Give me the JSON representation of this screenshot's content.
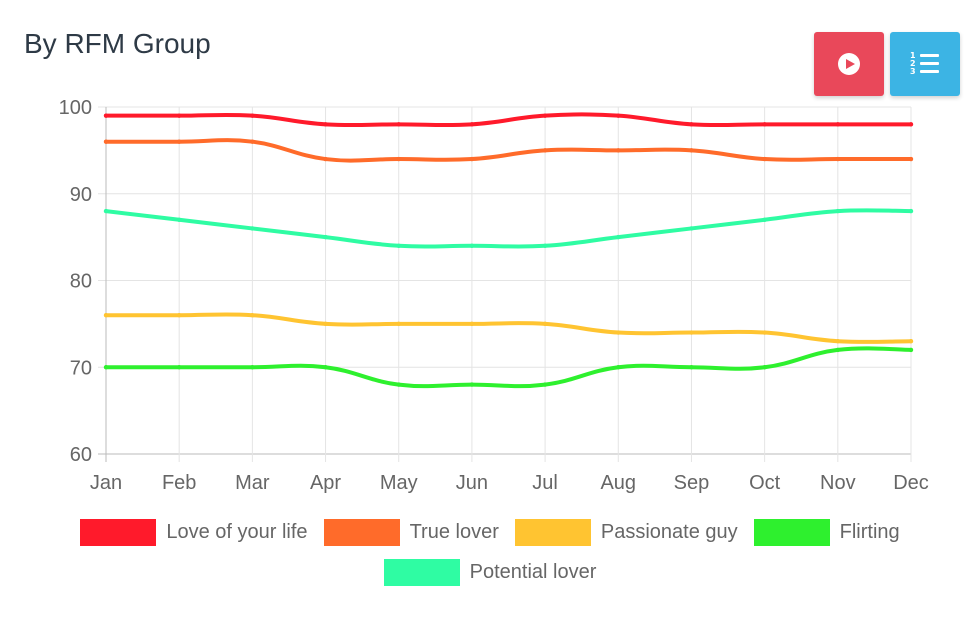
{
  "header": {
    "title": "By RFM Group"
  },
  "toolbar": {
    "play_color": "#e9485a",
    "list_color": "#3cb4e4",
    "list_numbers": [
      "1",
      "2",
      "3"
    ]
  },
  "chart_data": {
    "type": "line",
    "title": "By RFM Group",
    "xlabel": "",
    "ylabel": "",
    "x": [
      "Jan",
      "Feb",
      "Mar",
      "Apr",
      "May",
      "Jun",
      "Jul",
      "Aug",
      "Sep",
      "Oct",
      "Nov",
      "Dec"
    ],
    "ylim": [
      60,
      100
    ],
    "yticks": [
      "100",
      "90",
      "80",
      "70",
      "60"
    ],
    "grid": true,
    "legend": "bottom",
    "series": [
      {
        "name": "Love of your life",
        "color": "#ff1a2b",
        "values": [
          99,
          99,
          99,
          98,
          98,
          98,
          99,
          99,
          98,
          98,
          98,
          98
        ]
      },
      {
        "name": "True lover",
        "color": "#ff6b2a",
        "values": [
          96,
          96,
          96,
          94,
          94,
          94,
          95,
          95,
          95,
          94,
          94,
          94
        ]
      },
      {
        "name": "Passionate guy",
        "color": "#ffc431",
        "values": [
          76,
          76,
          76,
          75,
          75,
          75,
          75,
          74,
          74,
          74,
          73,
          73
        ]
      },
      {
        "name": "Flirting",
        "color": "#2ef02e",
        "values": [
          70,
          70,
          70,
          70,
          68,
          68,
          68,
          70,
          70,
          70,
          72,
          72
        ]
      },
      {
        "name": "Potential lover",
        "color": "#2ffca3",
        "values": [
          88,
          87,
          86,
          85,
          84,
          84,
          84,
          85,
          86,
          87,
          88,
          88
        ]
      }
    ]
  }
}
